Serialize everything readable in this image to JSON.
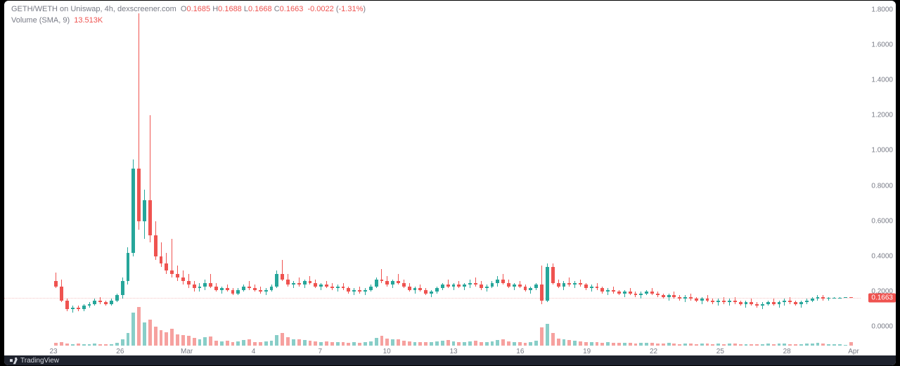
{
  "header": {
    "pair": "GETH/WETH on Uniswap",
    "interval": "4h",
    "source": "dexscreener.com",
    "ohlc": {
      "o": "0.1685",
      "h": "0.1688",
      "l": "0.1668",
      "c": "0.1663",
      "chg": "-0.0022",
      "chg_pct": "-1.31%"
    },
    "volume_label": "Volume (SMA, 9)",
    "volume_value": "13.513K"
  },
  "colors": {
    "up": "#26a69a",
    "down": "#ef5350",
    "text_muted": "#787b86",
    "bg": "#ffffff",
    "price_line": "#ef5350"
  },
  "price_axis": {
    "min": -0.05,
    "max": 1.85,
    "ticks": [
      0.0,
      0.2,
      0.4,
      0.6,
      0.8,
      1.0,
      1.2,
      1.4,
      1.6,
      1.8
    ],
    "current": 0.1663,
    "current_label": "0.1663"
  },
  "time_axis": {
    "labels": [
      "23",
      "26",
      "Mar",
      "4",
      "7",
      "10",
      "13",
      "16",
      "19",
      "22",
      "25",
      "28",
      "Apr"
    ]
  },
  "volume": {
    "max": 140
  },
  "candles": [
    {
      "o": 0.26,
      "h": 0.31,
      "l": 0.22,
      "c": 0.23,
      "v": 9,
      "d": -1
    },
    {
      "o": 0.23,
      "h": 0.27,
      "l": 0.14,
      "c": 0.15,
      "v": 12,
      "d": -1
    },
    {
      "o": 0.15,
      "h": 0.16,
      "l": 0.09,
      "c": 0.1,
      "v": 8,
      "d": -1
    },
    {
      "o": 0.1,
      "h": 0.12,
      "l": 0.08,
      "c": 0.11,
      "v": 6,
      "d": 1
    },
    {
      "o": 0.11,
      "h": 0.12,
      "l": 0.09,
      "c": 0.1,
      "v": 7,
      "d": -1
    },
    {
      "o": 0.1,
      "h": 0.13,
      "l": 0.09,
      "c": 0.12,
      "v": 5,
      "d": 1
    },
    {
      "o": 0.12,
      "h": 0.14,
      "l": 0.11,
      "c": 0.13,
      "v": 6,
      "d": 1
    },
    {
      "o": 0.13,
      "h": 0.16,
      "l": 0.12,
      "c": 0.15,
      "v": 7,
      "d": 1
    },
    {
      "o": 0.15,
      "h": 0.17,
      "l": 0.13,
      "c": 0.14,
      "v": 5,
      "d": -1
    },
    {
      "o": 0.14,
      "h": 0.15,
      "l": 0.12,
      "c": 0.13,
      "v": 4,
      "d": -1
    },
    {
      "o": 0.13,
      "h": 0.16,
      "l": 0.12,
      "c": 0.15,
      "v": 6,
      "d": 1
    },
    {
      "o": 0.15,
      "h": 0.19,
      "l": 0.14,
      "c": 0.18,
      "v": 10,
      "d": 1
    },
    {
      "o": 0.18,
      "h": 0.28,
      "l": 0.16,
      "c": 0.26,
      "v": 22,
      "d": 1
    },
    {
      "o": 0.26,
      "h": 0.45,
      "l": 0.24,
      "c": 0.42,
      "v": 45,
      "d": 1
    },
    {
      "o": 0.42,
      "h": 0.95,
      "l": 0.4,
      "c": 0.9,
      "v": 120,
      "d": 1
    },
    {
      "o": 0.9,
      "h": 1.78,
      "l": 0.55,
      "c": 0.6,
      "v": 140,
      "d": -1
    },
    {
      "o": 0.6,
      "h": 0.78,
      "l": 0.5,
      "c": 0.72,
      "v": 85,
      "d": 1
    },
    {
      "o": 0.72,
      "h": 1.2,
      "l": 0.48,
      "c": 0.52,
      "v": 95,
      "d": -1
    },
    {
      "o": 0.52,
      "h": 0.6,
      "l": 0.38,
      "c": 0.4,
      "v": 70,
      "d": -1
    },
    {
      "o": 0.4,
      "h": 0.48,
      "l": 0.34,
      "c": 0.36,
      "v": 55,
      "d": -1
    },
    {
      "o": 0.36,
      "h": 0.42,
      "l": 0.3,
      "c": 0.32,
      "v": 48,
      "d": -1
    },
    {
      "o": 0.32,
      "h": 0.5,
      "l": 0.28,
      "c": 0.3,
      "v": 60,
      "d": -1
    },
    {
      "o": 0.3,
      "h": 0.35,
      "l": 0.26,
      "c": 0.28,
      "v": 42,
      "d": -1
    },
    {
      "o": 0.28,
      "h": 0.32,
      "l": 0.24,
      "c": 0.26,
      "v": 38,
      "d": -1
    },
    {
      "o": 0.26,
      "h": 0.3,
      "l": 0.22,
      "c": 0.24,
      "v": 35,
      "d": -1
    },
    {
      "o": 0.24,
      "h": 0.26,
      "l": 0.2,
      "c": 0.22,
      "v": 28,
      "d": -1
    },
    {
      "o": 0.22,
      "h": 0.25,
      "l": 0.2,
      "c": 0.23,
      "v": 22,
      "d": 1
    },
    {
      "o": 0.23,
      "h": 0.27,
      "l": 0.21,
      "c": 0.25,
      "v": 30,
      "d": 1
    },
    {
      "o": 0.25,
      "h": 0.3,
      "l": 0.22,
      "c": 0.23,
      "v": 34,
      "d": -1
    },
    {
      "o": 0.23,
      "h": 0.25,
      "l": 0.2,
      "c": 0.21,
      "v": 18,
      "d": -1
    },
    {
      "o": 0.21,
      "h": 0.23,
      "l": 0.19,
      "c": 0.22,
      "v": 15,
      "d": 1
    },
    {
      "o": 0.22,
      "h": 0.24,
      "l": 0.2,
      "c": 0.21,
      "v": 17,
      "d": -1
    },
    {
      "o": 0.21,
      "h": 0.22,
      "l": 0.18,
      "c": 0.19,
      "v": 14,
      "d": -1
    },
    {
      "o": 0.19,
      "h": 0.22,
      "l": 0.18,
      "c": 0.21,
      "v": 16,
      "d": 1
    },
    {
      "o": 0.21,
      "h": 0.24,
      "l": 0.2,
      "c": 0.23,
      "v": 20,
      "d": 1
    },
    {
      "o": 0.23,
      "h": 0.26,
      "l": 0.21,
      "c": 0.22,
      "v": 22,
      "d": -1
    },
    {
      "o": 0.22,
      "h": 0.24,
      "l": 0.2,
      "c": 0.21,
      "v": 14,
      "d": -1
    },
    {
      "o": 0.21,
      "h": 0.23,
      "l": 0.19,
      "c": 0.2,
      "v": 12,
      "d": -1
    },
    {
      "o": 0.2,
      "h": 0.22,
      "l": 0.18,
      "c": 0.21,
      "v": 15,
      "d": 1
    },
    {
      "o": 0.21,
      "h": 0.24,
      "l": 0.2,
      "c": 0.23,
      "v": 18,
      "d": 1
    },
    {
      "o": 0.23,
      "h": 0.32,
      "l": 0.22,
      "c": 0.3,
      "v": 38,
      "d": 1
    },
    {
      "o": 0.3,
      "h": 0.38,
      "l": 0.26,
      "c": 0.27,
      "v": 45,
      "d": -1
    },
    {
      "o": 0.27,
      "h": 0.3,
      "l": 0.23,
      "c": 0.24,
      "v": 30,
      "d": -1
    },
    {
      "o": 0.24,
      "h": 0.26,
      "l": 0.22,
      "c": 0.25,
      "v": 22,
      "d": 1
    },
    {
      "o": 0.25,
      "h": 0.28,
      "l": 0.23,
      "c": 0.24,
      "v": 24,
      "d": -1
    },
    {
      "o": 0.24,
      "h": 0.27,
      "l": 0.22,
      "c": 0.26,
      "v": 20,
      "d": 1
    },
    {
      "o": 0.26,
      "h": 0.29,
      "l": 0.24,
      "c": 0.25,
      "v": 18,
      "d": -1
    },
    {
      "o": 0.25,
      "h": 0.27,
      "l": 0.22,
      "c": 0.23,
      "v": 16,
      "d": -1
    },
    {
      "o": 0.23,
      "h": 0.25,
      "l": 0.21,
      "c": 0.24,
      "v": 14,
      "d": 1
    },
    {
      "o": 0.24,
      "h": 0.26,
      "l": 0.22,
      "c": 0.23,
      "v": 15,
      "d": -1
    },
    {
      "o": 0.23,
      "h": 0.25,
      "l": 0.21,
      "c": 0.22,
      "v": 13,
      "d": -1
    },
    {
      "o": 0.22,
      "h": 0.24,
      "l": 0.2,
      "c": 0.23,
      "v": 12,
      "d": 1
    },
    {
      "o": 0.23,
      "h": 0.25,
      "l": 0.21,
      "c": 0.22,
      "v": 14,
      "d": -1
    },
    {
      "o": 0.22,
      "h": 0.23,
      "l": 0.19,
      "c": 0.2,
      "v": 11,
      "d": -1
    },
    {
      "o": 0.2,
      "h": 0.22,
      "l": 0.18,
      "c": 0.21,
      "v": 13,
      "d": 1
    },
    {
      "o": 0.21,
      "h": 0.23,
      "l": 0.19,
      "c": 0.2,
      "v": 10,
      "d": -1
    },
    {
      "o": 0.2,
      "h": 0.22,
      "l": 0.18,
      "c": 0.21,
      "v": 12,
      "d": 1
    },
    {
      "o": 0.21,
      "h": 0.24,
      "l": 0.2,
      "c": 0.23,
      "v": 15,
      "d": 1
    },
    {
      "o": 0.23,
      "h": 0.28,
      "l": 0.22,
      "c": 0.27,
      "v": 28,
      "d": 1
    },
    {
      "o": 0.27,
      "h": 0.33,
      "l": 0.25,
      "c": 0.26,
      "v": 35,
      "d": -1
    },
    {
      "o": 0.26,
      "h": 0.29,
      "l": 0.23,
      "c": 0.24,
      "v": 25,
      "d": -1
    },
    {
      "o": 0.24,
      "h": 0.27,
      "l": 0.22,
      "c": 0.26,
      "v": 22,
      "d": 1
    },
    {
      "o": 0.26,
      "h": 0.3,
      "l": 0.24,
      "c": 0.25,
      "v": 24,
      "d": -1
    },
    {
      "o": 0.25,
      "h": 0.27,
      "l": 0.22,
      "c": 0.23,
      "v": 18,
      "d": -1
    },
    {
      "o": 0.23,
      "h": 0.25,
      "l": 0.2,
      "c": 0.21,
      "v": 16,
      "d": -1
    },
    {
      "o": 0.21,
      "h": 0.23,
      "l": 0.19,
      "c": 0.22,
      "v": 14,
      "d": 1
    },
    {
      "o": 0.22,
      "h": 0.24,
      "l": 0.2,
      "c": 0.21,
      "v": 13,
      "d": -1
    },
    {
      "o": 0.21,
      "h": 0.22,
      "l": 0.18,
      "c": 0.19,
      "v": 12,
      "d": -1
    },
    {
      "o": 0.19,
      "h": 0.21,
      "l": 0.17,
      "c": 0.2,
      "v": 14,
      "d": 1
    },
    {
      "o": 0.2,
      "h": 0.23,
      "l": 0.19,
      "c": 0.22,
      "v": 16,
      "d": 1
    },
    {
      "o": 0.22,
      "h": 0.25,
      "l": 0.21,
      "c": 0.24,
      "v": 18,
      "d": 1
    },
    {
      "o": 0.24,
      "h": 0.27,
      "l": 0.22,
      "c": 0.23,
      "v": 20,
      "d": -1
    },
    {
      "o": 0.23,
      "h": 0.25,
      "l": 0.21,
      "c": 0.24,
      "v": 15,
      "d": 1
    },
    {
      "o": 0.24,
      "h": 0.26,
      "l": 0.22,
      "c": 0.23,
      "v": 14,
      "d": -1
    },
    {
      "o": 0.23,
      "h": 0.25,
      "l": 0.21,
      "c": 0.24,
      "v": 13,
      "d": 1
    },
    {
      "o": 0.24,
      "h": 0.27,
      "l": 0.22,
      "c": 0.25,
      "v": 16,
      "d": 1
    },
    {
      "o": 0.25,
      "h": 0.28,
      "l": 0.23,
      "c": 0.24,
      "v": 18,
      "d": -1
    },
    {
      "o": 0.24,
      "h": 0.26,
      "l": 0.21,
      "c": 0.22,
      "v": 14,
      "d": -1
    },
    {
      "o": 0.22,
      "h": 0.24,
      "l": 0.2,
      "c": 0.23,
      "v": 12,
      "d": 1
    },
    {
      "o": 0.23,
      "h": 0.26,
      "l": 0.22,
      "c": 0.25,
      "v": 15,
      "d": 1
    },
    {
      "o": 0.25,
      "h": 0.29,
      "l": 0.23,
      "c": 0.27,
      "v": 20,
      "d": 1
    },
    {
      "o": 0.27,
      "h": 0.3,
      "l": 0.24,
      "c": 0.25,
      "v": 22,
      "d": -1
    },
    {
      "o": 0.25,
      "h": 0.27,
      "l": 0.22,
      "c": 0.23,
      "v": 16,
      "d": -1
    },
    {
      "o": 0.23,
      "h": 0.25,
      "l": 0.21,
      "c": 0.24,
      "v": 14,
      "d": 1
    },
    {
      "o": 0.24,
      "h": 0.26,
      "l": 0.22,
      "c": 0.23,
      "v": 12,
      "d": -1
    },
    {
      "o": 0.23,
      "h": 0.24,
      "l": 0.2,
      "c": 0.21,
      "v": 11,
      "d": -1
    },
    {
      "o": 0.21,
      "h": 0.23,
      "l": 0.19,
      "c": 0.22,
      "v": 13,
      "d": 1
    },
    {
      "o": 0.22,
      "h": 0.25,
      "l": 0.21,
      "c": 0.24,
      "v": 18,
      "d": 1
    },
    {
      "o": 0.24,
      "h": 0.35,
      "l": 0.13,
      "c": 0.15,
      "v": 65,
      "d": -1
    },
    {
      "o": 0.15,
      "h": 0.36,
      "l": 0.14,
      "c": 0.34,
      "v": 80,
      "d": 1
    },
    {
      "o": 0.34,
      "h": 0.36,
      "l": 0.24,
      "c": 0.25,
      "v": 45,
      "d": -1
    },
    {
      "o": 0.25,
      "h": 0.27,
      "l": 0.22,
      "c": 0.23,
      "v": 25,
      "d": -1
    },
    {
      "o": 0.23,
      "h": 0.26,
      "l": 0.21,
      "c": 0.25,
      "v": 22,
      "d": 1
    },
    {
      "o": 0.25,
      "h": 0.28,
      "l": 0.23,
      "c": 0.24,
      "v": 20,
      "d": -1
    },
    {
      "o": 0.24,
      "h": 0.26,
      "l": 0.22,
      "c": 0.25,
      "v": 18,
      "d": 1
    },
    {
      "o": 0.25,
      "h": 0.27,
      "l": 0.23,
      "c": 0.24,
      "v": 16,
      "d": -1
    },
    {
      "o": 0.24,
      "h": 0.25,
      "l": 0.21,
      "c": 0.22,
      "v": 14,
      "d": -1
    },
    {
      "o": 0.22,
      "h": 0.24,
      "l": 0.2,
      "c": 0.23,
      "v": 12,
      "d": 1
    },
    {
      "o": 0.23,
      "h": 0.25,
      "l": 0.21,
      "c": 0.22,
      "v": 13,
      "d": -1
    },
    {
      "o": 0.22,
      "h": 0.23,
      "l": 0.19,
      "c": 0.2,
      "v": 11,
      "d": -1
    },
    {
      "o": 0.2,
      "h": 0.22,
      "l": 0.18,
      "c": 0.21,
      "v": 12,
      "d": 1
    },
    {
      "o": 0.21,
      "h": 0.23,
      "l": 0.19,
      "c": 0.2,
      "v": 10,
      "d": -1
    },
    {
      "o": 0.2,
      "h": 0.21,
      "l": 0.18,
      "c": 0.19,
      "v": 9,
      "d": -1
    },
    {
      "o": 0.19,
      "h": 0.21,
      "l": 0.17,
      "c": 0.2,
      "v": 11,
      "d": 1
    },
    {
      "o": 0.2,
      "h": 0.22,
      "l": 0.18,
      "c": 0.19,
      "v": 10,
      "d": -1
    },
    {
      "o": 0.19,
      "h": 0.2,
      "l": 0.17,
      "c": 0.18,
      "v": 8,
      "d": -1
    },
    {
      "o": 0.18,
      "h": 0.2,
      "l": 0.16,
      "c": 0.19,
      "v": 9,
      "d": 1
    },
    {
      "o": 0.19,
      "h": 0.21,
      "l": 0.18,
      "c": 0.2,
      "v": 10,
      "d": 1
    },
    {
      "o": 0.2,
      "h": 0.22,
      "l": 0.18,
      "c": 0.19,
      "v": 11,
      "d": -1
    },
    {
      "o": 0.19,
      "h": 0.2,
      "l": 0.17,
      "c": 0.18,
      "v": 8,
      "d": -1
    },
    {
      "o": 0.18,
      "h": 0.19,
      "l": 0.16,
      "c": 0.17,
      "v": 7,
      "d": -1
    },
    {
      "o": 0.17,
      "h": 0.19,
      "l": 0.15,
      "c": 0.18,
      "v": 9,
      "d": 1
    },
    {
      "o": 0.18,
      "h": 0.2,
      "l": 0.16,
      "c": 0.17,
      "v": 8,
      "d": -1
    },
    {
      "o": 0.17,
      "h": 0.18,
      "l": 0.15,
      "c": 0.16,
      "v": 6,
      "d": -1
    },
    {
      "o": 0.16,
      "h": 0.18,
      "l": 0.14,
      "c": 0.17,
      "v": 8,
      "d": 1
    },
    {
      "o": 0.17,
      "h": 0.19,
      "l": 0.15,
      "c": 0.16,
      "v": 7,
      "d": -1
    },
    {
      "o": 0.16,
      "h": 0.17,
      "l": 0.14,
      "c": 0.15,
      "v": 6,
      "d": -1
    },
    {
      "o": 0.15,
      "h": 0.17,
      "l": 0.13,
      "c": 0.16,
      "v": 8,
      "d": 1
    },
    {
      "o": 0.16,
      "h": 0.18,
      "l": 0.14,
      "c": 0.15,
      "v": 7,
      "d": -1
    },
    {
      "o": 0.15,
      "h": 0.16,
      "l": 0.13,
      "c": 0.14,
      "v": 5,
      "d": -1
    },
    {
      "o": 0.14,
      "h": 0.16,
      "l": 0.12,
      "c": 0.15,
      "v": 7,
      "d": 1
    },
    {
      "o": 0.15,
      "h": 0.17,
      "l": 0.13,
      "c": 0.14,
      "v": 6,
      "d": -1
    },
    {
      "o": 0.14,
      "h": 0.16,
      "l": 0.12,
      "c": 0.15,
      "v": 8,
      "d": 1
    },
    {
      "o": 0.15,
      "h": 0.17,
      "l": 0.13,
      "c": 0.14,
      "v": 7,
      "d": -1
    },
    {
      "o": 0.14,
      "h": 0.15,
      "l": 0.12,
      "c": 0.13,
      "v": 5,
      "d": -1
    },
    {
      "o": 0.13,
      "h": 0.15,
      "l": 0.11,
      "c": 0.14,
      "v": 6,
      "d": 1
    },
    {
      "o": 0.14,
      "h": 0.16,
      "l": 0.12,
      "c": 0.13,
      "v": 5,
      "d": -1
    },
    {
      "o": 0.13,
      "h": 0.14,
      "l": 0.11,
      "c": 0.12,
      "v": 4,
      "d": -1
    },
    {
      "o": 0.12,
      "h": 0.14,
      "l": 0.1,
      "c": 0.13,
      "v": 6,
      "d": 1
    },
    {
      "o": 0.13,
      "h": 0.15,
      "l": 0.12,
      "c": 0.14,
      "v": 7,
      "d": 1
    },
    {
      "o": 0.14,
      "h": 0.16,
      "l": 0.12,
      "c": 0.13,
      "v": 6,
      "d": -1
    },
    {
      "o": 0.13,
      "h": 0.15,
      "l": 0.11,
      "c": 0.14,
      "v": 8,
      "d": 1
    },
    {
      "o": 0.14,
      "h": 0.16,
      "l": 0.12,
      "c": 0.15,
      "v": 7,
      "d": 1
    },
    {
      "o": 0.15,
      "h": 0.17,
      "l": 0.13,
      "c": 0.14,
      "v": 6,
      "d": -1
    },
    {
      "o": 0.14,
      "h": 0.15,
      "l": 0.12,
      "c": 0.13,
      "v": 5,
      "d": -1
    },
    {
      "o": 0.13,
      "h": 0.15,
      "l": 0.11,
      "c": 0.14,
      "v": 6,
      "d": 1
    },
    {
      "o": 0.14,
      "h": 0.16,
      "l": 0.13,
      "c": 0.15,
      "v": 7,
      "d": 1
    },
    {
      "o": 0.15,
      "h": 0.17,
      "l": 0.14,
      "c": 0.16,
      "v": 8,
      "d": 1
    },
    {
      "o": 0.16,
      "h": 0.18,
      "l": 0.15,
      "c": 0.17,
      "v": 9,
      "d": 1
    },
    {
      "o": 0.17,
      "h": 0.18,
      "l": 0.15,
      "c": 0.16,
      "v": 7,
      "d": -1
    },
    {
      "o": 0.16,
      "h": 0.17,
      "l": 0.15,
      "c": 0.165,
      "v": 6,
      "d": 1
    },
    {
      "o": 0.165,
      "h": 0.17,
      "l": 0.16,
      "c": 0.166,
      "v": 5,
      "d": 1
    },
    {
      "o": 0.166,
      "h": 0.169,
      "l": 0.165,
      "c": 0.167,
      "v": 4,
      "d": 1
    },
    {
      "o": 0.167,
      "h": 0.169,
      "l": 0.166,
      "c": 0.168,
      "v": 3,
      "d": 1
    },
    {
      "o": 0.1685,
      "h": 0.1688,
      "l": 0.1668,
      "c": 0.1663,
      "v": 13,
      "d": -1
    }
  ],
  "footer": {
    "label": "TradingView"
  }
}
